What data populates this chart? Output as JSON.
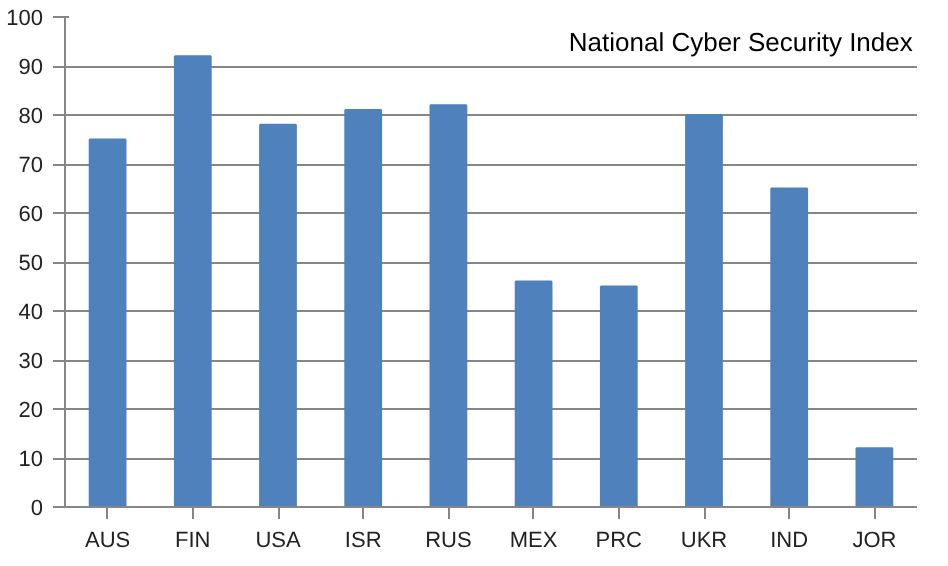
{
  "chart_data": {
    "type": "bar",
    "title": "National Cyber Security Index",
    "categories": [
      "AUS",
      "FIN",
      "USA",
      "ISR",
      "RUS",
      "MEX",
      "PRC",
      "UKR",
      "IND",
      "JOR"
    ],
    "values": [
      75,
      92,
      78,
      81,
      82,
      46,
      45,
      80,
      65,
      12
    ],
    "color": "#4f81bd",
    "ylim": [
      0,
      100
    ],
    "yticks": [
      0,
      10,
      20,
      30,
      40,
      50,
      60,
      70,
      80,
      90,
      100
    ],
    "grid": "y"
  }
}
